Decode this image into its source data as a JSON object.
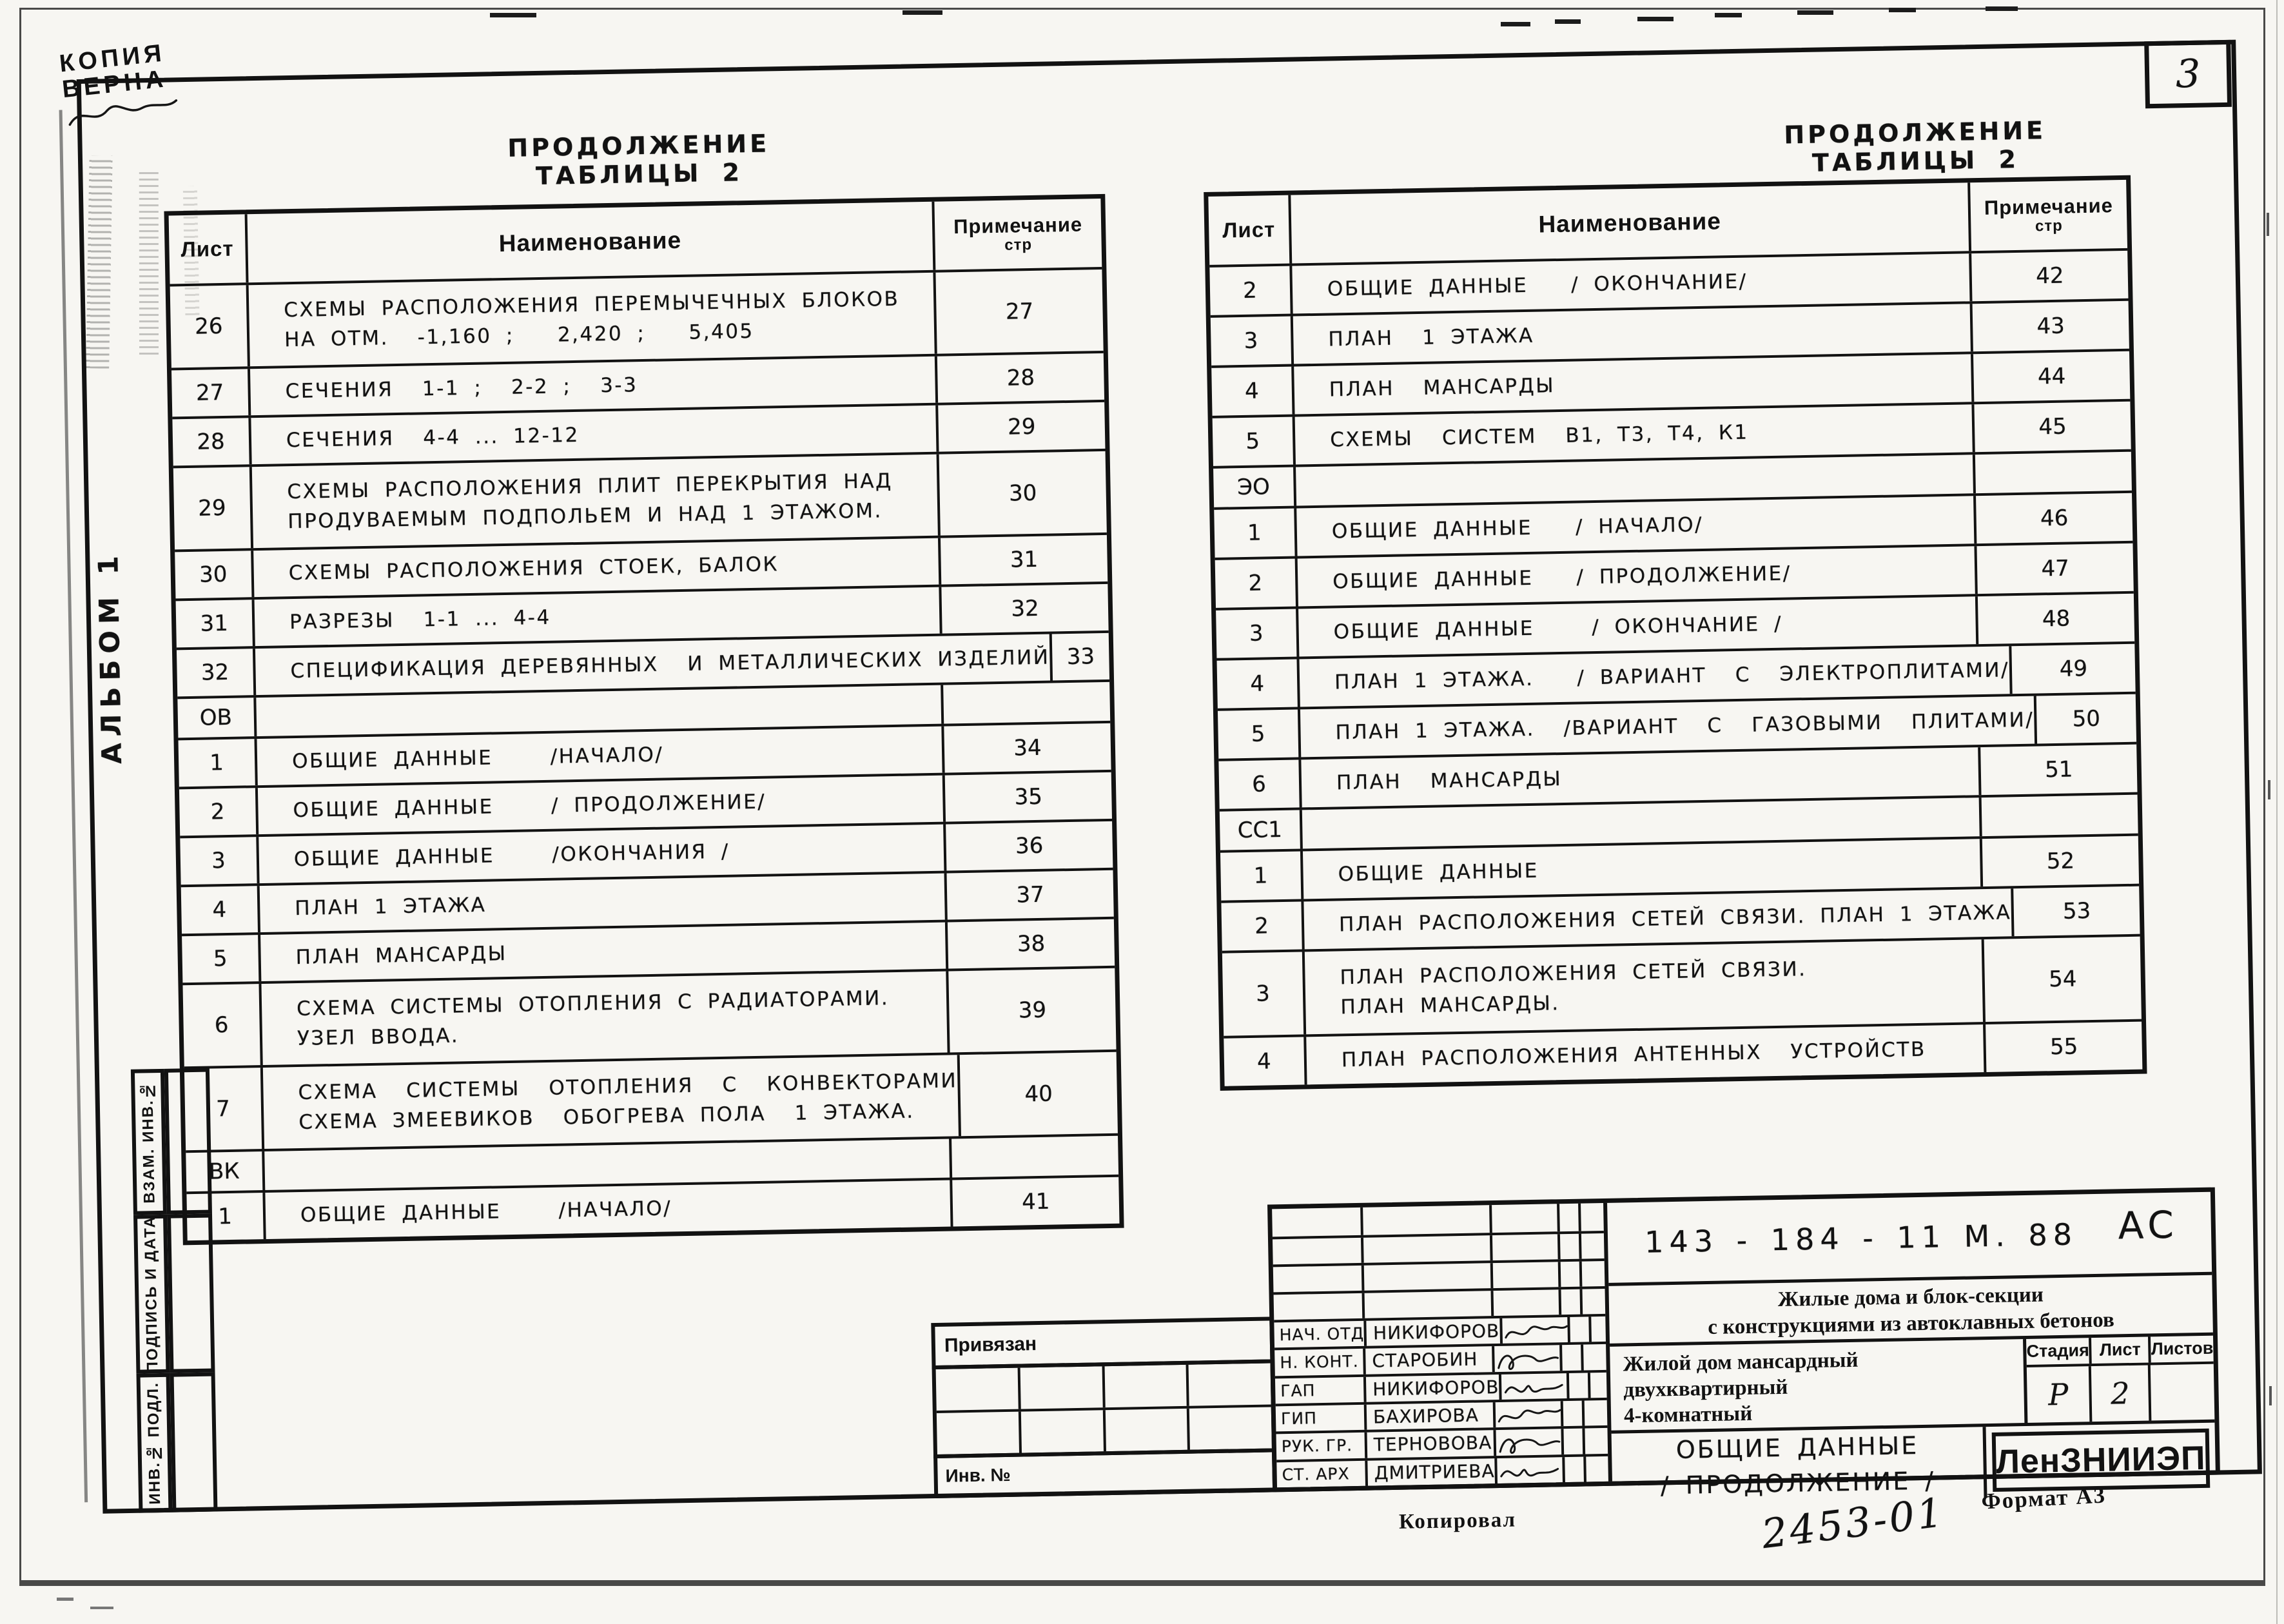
{
  "page": {
    "sheet_number": "3",
    "copy_stamp_line1": "КОПИЯ",
    "copy_stamp_line2": "ВЕРНА",
    "album_label": "АЛЬБОМ 1",
    "kopiroval_label": "Копировал",
    "doc_number_hand": "2453-01",
    "format_label": "Формат А3"
  },
  "side_strip": {
    "labels": [
      "ВЗАМ. ИНВ.№",
      "ПОДПИСЬ И ДАТА",
      "ИНВ.№ ПОДЛ."
    ]
  },
  "left_table": {
    "title": "ПРОДОЛЖЕНИЕ ТАБЛИЦЫ 2",
    "headers": {
      "sheet": "Лист",
      "name": "Наименование",
      "note_line1": "Примечание",
      "note_line2": "стр"
    },
    "rows": [
      {
        "sheet": "26",
        "name_lines": [
          "СХЕМЫ РАСПОЛОЖЕНИЯ ПЕРЕМЫЧЕЧНЫХ БЛОКОВ",
          "НА ОТМ.  -1,160 ;   2,420 ;   5,405"
        ],
        "note": "27"
      },
      {
        "sheet": "27",
        "name_lines": [
          "СЕЧЕНИЯ  1-1 ;  2-2 ;  3-3"
        ],
        "note": "28"
      },
      {
        "sheet": "28",
        "name_lines": [
          "СЕЧЕНИЯ  4-4 ... 12-12"
        ],
        "note": "29"
      },
      {
        "sheet": "29",
        "name_lines": [
          "СХЕМЫ РАСПОЛОЖЕНИЯ ПЛИТ ПЕРЕКРЫТИЯ НАД",
          "ПРОДУВАЕМЫМ ПОДПОЛЬЕМ И НАД 1 ЭТАЖОМ."
        ],
        "note": "30"
      },
      {
        "sheet": "30",
        "name_lines": [
          "СХЕМЫ РАСПОЛОЖЕНИЯ СТОЕК, БАЛОК"
        ],
        "note": "31"
      },
      {
        "sheet": "31",
        "name_lines": [
          "РАЗРЕЗЫ  1-1 ... 4-4"
        ],
        "note": "32"
      },
      {
        "sheet": "32",
        "name_lines": [
          "СПЕЦИФИКАЦИЯ ДЕРЕВЯННЫХ  И МЕТАЛЛИЧЕСКИХ ИЗДЕЛИЙ"
        ],
        "note": "33"
      },
      {
        "section": "ОВ"
      },
      {
        "sheet": "1",
        "name_lines": [
          "ОБЩИЕ ДАННЫЕ    /НАЧАЛО/"
        ],
        "note": "34"
      },
      {
        "sheet": "2",
        "name_lines": [
          "ОБЩИЕ ДАННЫЕ    / ПРОДОЛЖЕНИЕ/"
        ],
        "note": "35"
      },
      {
        "sheet": "3",
        "name_lines": [
          "ОБЩИЕ ДАННЫЕ    /ОКОНЧАНИЯ /"
        ],
        "note": "36"
      },
      {
        "sheet": "4",
        "name_lines": [
          "ПЛАН 1 ЭТАЖА"
        ],
        "note": "37"
      },
      {
        "sheet": "5",
        "name_lines": [
          "ПЛАН МАНСАРДЫ"
        ],
        "note": "38"
      },
      {
        "sheet": "6",
        "name_lines": [
          "СХЕМА СИСТЕМЫ ОТОПЛЕНИЯ С РАДИАТОРАМИ.",
          "УЗЕЛ ВВОДА."
        ],
        "note": "39"
      },
      {
        "sheet": "7",
        "name_lines": [
          "СХЕМА  СИСТЕМЫ  ОТОПЛЕНИЯ  С  КОНВЕКТОРАМИ",
          "СХЕМА ЗМЕЕВИКОВ  ОБОГРЕВА ПОЛА  1 ЭТАЖА."
        ],
        "note": "40"
      },
      {
        "section": "ВК"
      },
      {
        "sheet": "1",
        "name_lines": [
          "ОБЩИЕ ДАННЫЕ    /НАЧАЛО/"
        ],
        "note": "41"
      }
    ]
  },
  "right_table": {
    "title": "ПРОДОЛЖЕНИЕ ТАБЛИЦЫ 2",
    "headers": {
      "sheet": "Лист",
      "name": "Наименование",
      "note_line1": "Примечание",
      "note_line2": "стр"
    },
    "rows": [
      {
        "sheet": "2",
        "name_lines": [
          "ОБЩИЕ ДАННЫЕ   / ОКОНЧАНИЕ/"
        ],
        "note": "42"
      },
      {
        "sheet": "3",
        "name_lines": [
          "ПЛАН  1 ЭТАЖА"
        ],
        "note": "43"
      },
      {
        "sheet": "4",
        "name_lines": [
          "ПЛАН  МАНСАРДЫ"
        ],
        "note": "44"
      },
      {
        "sheet": "5",
        "name_lines": [
          "СХЕМЫ  СИСТЕМ  В1, Т3, Т4, К1"
        ],
        "note": "45"
      },
      {
        "section": "ЭО"
      },
      {
        "sheet": "1",
        "name_lines": [
          "ОБЩИЕ ДАННЫЕ   / НАЧАЛО/"
        ],
        "note": "46"
      },
      {
        "sheet": "2",
        "name_lines": [
          "ОБЩИЕ ДАННЫЕ   / ПРОДОЛЖЕНИЕ/"
        ],
        "note": "47"
      },
      {
        "sheet": "3",
        "name_lines": [
          "ОБЩИЕ ДАННЫЕ    / ОКОНЧАНИЕ /"
        ],
        "note": "48"
      },
      {
        "sheet": "4",
        "name_lines": [
          "ПЛАН 1 ЭТАЖА.   / ВАРИАНТ  С  ЭЛЕКТРОПЛИТАМИ/"
        ],
        "note": "49"
      },
      {
        "sheet": "5",
        "name_lines": [
          "ПЛАН 1 ЭТАЖА.  /ВАРИАНТ  С  ГАЗОВЫМИ  ПЛИТАМИ/"
        ],
        "note": "50"
      },
      {
        "sheet": "6",
        "name_lines": [
          "ПЛАН  МАНСАРДЫ"
        ],
        "note": "51"
      },
      {
        "section": "СС1"
      },
      {
        "sheet": "1",
        "name_lines": [
          "ОБЩИЕ ДАННЫЕ"
        ],
        "note": "52"
      },
      {
        "sheet": "2",
        "name_lines": [
          "ПЛАН РАСПОЛОЖЕНИЯ СЕТЕЙ СВЯЗИ. ПЛАН 1 ЭТАЖА"
        ],
        "note": "53"
      },
      {
        "sheet": "3",
        "name_lines": [
          "ПЛАН РАСПОЛОЖЕНИЯ СЕТЕЙ СВЯЗИ.",
          "ПЛАН МАНСАРДЫ."
        ],
        "note": "54"
      },
      {
        "sheet": "4",
        "name_lines": [
          "ПЛАН РАСПОЛОЖЕНИЯ АНТЕННЫХ  УСТРОЙСТВ"
        ],
        "note": "55"
      }
    ]
  },
  "title_block": {
    "doc_code": "143 - 184 - 11 М. 88",
    "doc_mark": "АС",
    "series_line1": "Жилые дома и блок-секции",
    "series_line2": "с конструкциями из автоклавных бетонов",
    "object_line1": "Жилой дом мансардный",
    "object_line2": "двухквартирный",
    "object_line3": "4-комнатный",
    "sheet_title_line1": "ОБЩИЕ ДАННЫЕ",
    "sheet_title_line2": "/ ПРОДОЛЖЕНИЕ /",
    "org": "ЛенЗНИИЭП",
    "stage_header": "Стадия",
    "sheet_header": "Лист",
    "sheets_header": "Листов",
    "stage_value": "Р",
    "sheet_value": "2",
    "sheets_value": "",
    "privyazan_label": "Привязан",
    "inv_label": "Инв. №",
    "signers": [
      {
        "role": "НАЧ. ОТД",
        "name": "НИКИФОРОВ"
      },
      {
        "role": "Н. КОНТ.",
        "name": "СТАРОБИН"
      },
      {
        "role": "ГАП",
        "name": "НИКИФОРОВ"
      },
      {
        "role": "ГИП",
        "name": "БАХИРОВА"
      },
      {
        "role": "РУК. ГР.",
        "name": "ТЕРНОВОВА"
      },
      {
        "role": "СТ. АРХ",
        "name": "ДМИТРИЕВА"
      }
    ]
  }
}
